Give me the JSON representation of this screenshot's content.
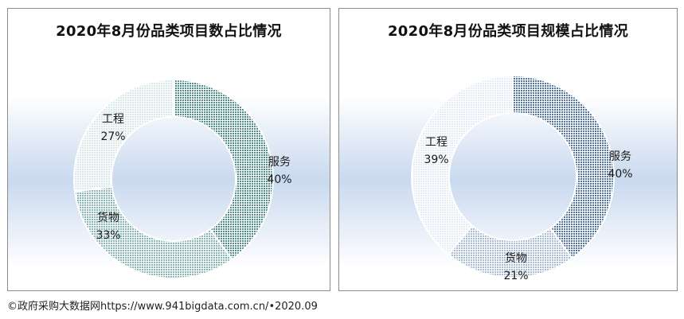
{
  "chart_data": [
    {
      "type": "donut",
      "title": "2020年8月份品类项目数占比情况",
      "series": [
        {
          "name": "服务",
          "label": "服务",
          "value": 40,
          "pct": "40%",
          "color": "#4f8f8c"
        },
        {
          "name": "货物",
          "label": "货物",
          "value": 33,
          "pct": "33%",
          "color": "#86b7b4"
        },
        {
          "name": "工程",
          "label": "工程",
          "value": 27,
          "pct": "27%",
          "color": "#d6e8e7"
        }
      ]
    },
    {
      "type": "donut",
      "title": "2020年8月份品类项目规模占比情况",
      "series": [
        {
          "name": "服务",
          "label": "服务",
          "value": 40,
          "pct": "40%",
          "color": "#5577a6"
        },
        {
          "name": "货物",
          "label": "货物",
          "value": 21,
          "pct": "21%",
          "color": "#a9bcd6"
        },
        {
          "name": "工程",
          "label": "工程",
          "value": 39,
          "pct": "39%",
          "color": "#e5ecf5"
        }
      ]
    }
  ],
  "footer": {
    "text": "©政府采购大数据网https://www.941bigdata.com.cn/•2020.09"
  }
}
